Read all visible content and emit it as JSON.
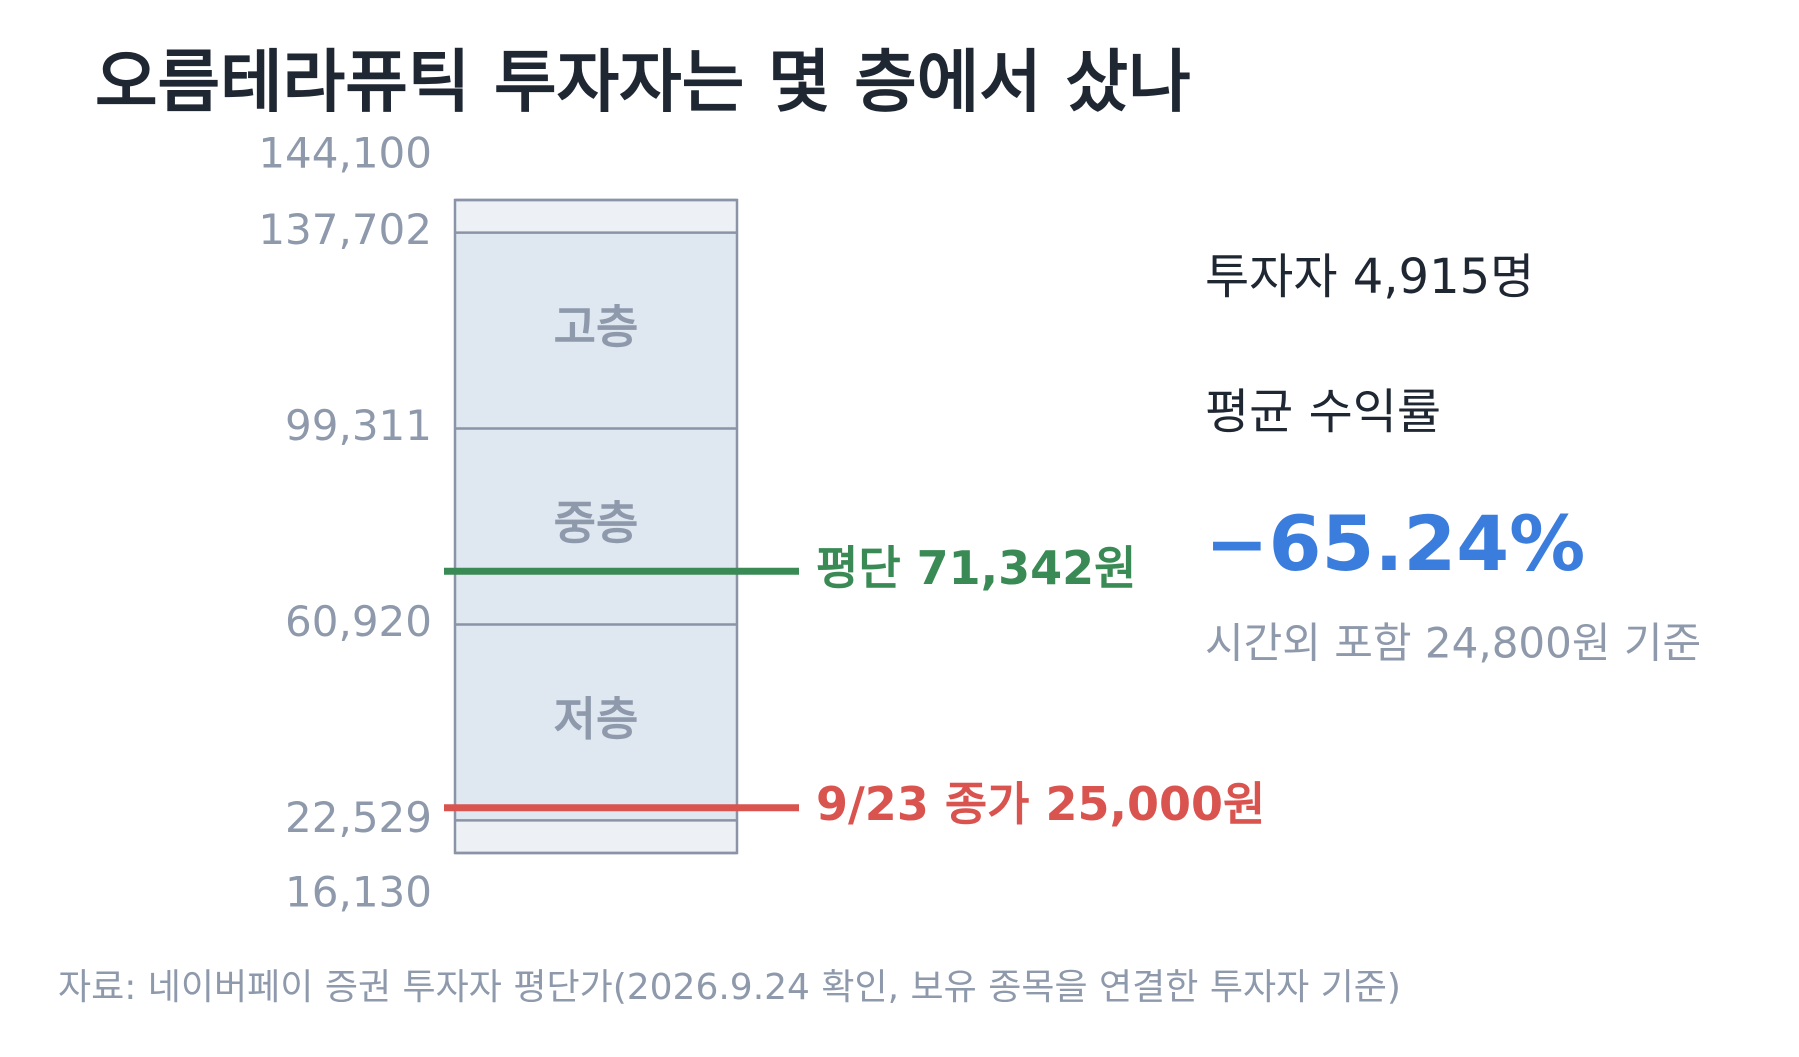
{
  "chart_data": {
    "type": "floors",
    "title": "오름테라퓨틱 투자자는 몇 층에서 샀나",
    "ylim": [
      16130,
      144100
    ],
    "yticks": [
      {
        "value": 144100,
        "label": "144,100"
      },
      {
        "value": 137702,
        "label": "137,702"
      },
      {
        "value": 99311,
        "label": "99,311"
      },
      {
        "value": 60920,
        "label": "60,920"
      },
      {
        "value": 22529,
        "label": "22,529"
      },
      {
        "value": 16130,
        "label": "16,130"
      }
    ],
    "bands": [
      {
        "name": "고층",
        "range": [
          99311,
          137702
        ]
      },
      {
        "name": "중층",
        "range": [
          60920,
          99311
        ]
      },
      {
        "name": "저층",
        "range": [
          22529,
          60920
        ]
      }
    ],
    "lines": [
      {
        "name": "평단 71,342원",
        "value": 71342,
        "color": "#3a8a55"
      },
      {
        "name": "9/23 종가 25,000원",
        "value": 25000,
        "color": "#d9534f"
      }
    ],
    "annotations": {
      "investors": "투자자 4,915명",
      "return_label": "평균 수익률",
      "return_value": "−65.24%",
      "return_note": "시간외 포함 24,800원 기준"
    },
    "source": "자료: 네이버페이 증권 투자자 평단가(2026.9.24 확인, 보유 종목을 연결한 투자자 기준)"
  }
}
